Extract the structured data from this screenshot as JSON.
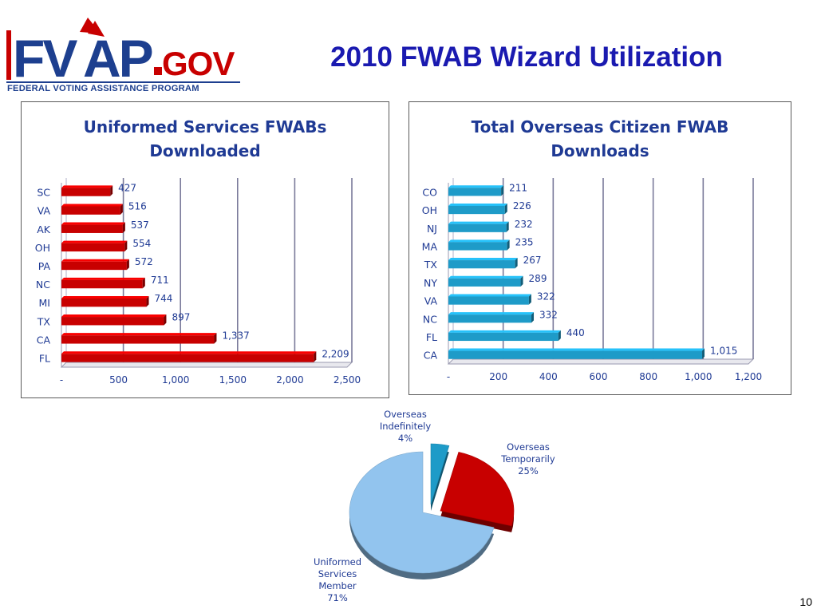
{
  "logo": {
    "text": "FVAP.GOV",
    "subtitle": "FEDERAL VOTING ASSISTANCE PROGRAM"
  },
  "slide_title": "2010 FWAB Wizard Utilization",
  "page_number": "10",
  "colors": {
    "red_bar": "#c80000",
    "blue_bar": "#1e9bc8",
    "title_blue": "#1a1ab0",
    "chart_title_blue": "#1f3a94",
    "pie_light_blue": "#92c4ee",
    "pie_red": "#c80000",
    "pie_teal": "#1e9bc8"
  },
  "chart_data": [
    {
      "type": "bar",
      "orientation": "horizontal",
      "title_line1": "Uniformed Services FWABs",
      "title_line2": "Downloaded",
      "categories": [
        "SC",
        "VA",
        "AK",
        "OH",
        "PA",
        "NC",
        "MI",
        "TX",
        "CA",
        "FL"
      ],
      "values": [
        427,
        516,
        537,
        554,
        572,
        711,
        744,
        897,
        1337,
        2209
      ],
      "value_labels": [
        "427",
        "516",
        "537",
        "554",
        "572",
        "711",
        "744",
        "897",
        "1,337",
        "2,209"
      ],
      "xlim": [
        0,
        2500
      ],
      "x_ticks": [
        "-",
        "500",
        "1,000",
        "1,500",
        "2,000",
        "2,500"
      ],
      "grid": "vertical",
      "color": "#c80000"
    },
    {
      "type": "bar",
      "orientation": "horizontal",
      "title_line1": "Total Overseas Citizen FWAB",
      "title_line2": "Downloads",
      "categories": [
        "CO",
        "OH",
        "NJ",
        "MA",
        "TX",
        "NY",
        "VA",
        "NC",
        "FL",
        "CA"
      ],
      "values": [
        211,
        226,
        232,
        235,
        267,
        289,
        322,
        332,
        440,
        1015
      ],
      "value_labels": [
        "211",
        "226",
        "232",
        "235",
        "267",
        "289",
        "322",
        "332",
        "440",
        "1,015"
      ],
      "xlim": [
        0,
        1200
      ],
      "x_ticks": [
        "-",
        "200",
        "400",
        "600",
        "800",
        "1,000",
        "1,200"
      ],
      "grid": "vertical",
      "color": "#1e9bc8"
    },
    {
      "type": "pie",
      "slices": [
        {
          "label_lines": [
            "Overseas",
            "Indefinitely"
          ],
          "pct_label": "4%",
          "value": 4,
          "color": "#1e9bc8"
        },
        {
          "label_lines": [
            "Overseas",
            "Temporarily"
          ],
          "pct_label": "25%",
          "value": 25,
          "color": "#c80000"
        },
        {
          "label_lines": [
            "Uniformed",
            "Services",
            "Member"
          ],
          "pct_label": "71%",
          "value": 71,
          "color": "#92c4ee"
        }
      ],
      "exploded": [
        "Overseas Indefinitely",
        "Overseas Temporarily"
      ]
    }
  ]
}
